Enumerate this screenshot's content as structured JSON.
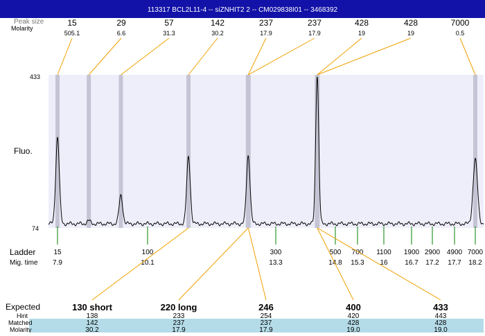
{
  "title": "113317  BCL2L11-4 -- siZNHIT2 2 -- CM029838I01 -- 3468392",
  "labels": {
    "peak_size_label": "Peak size",
    "molarity_label": "Molarity",
    "fluo_label": "Fluo.",
    "ladder_label": "Ladder",
    "migtime_label": "Mig. time",
    "expected_label": "Expected",
    "hint_label": "Hint",
    "matched_label": "Matched",
    "molarity_row_label": "Molarity"
  },
  "colors": {
    "title_bg": "#1212a8",
    "plot_bg": "#eeeefb",
    "band": "#c4c4d4",
    "connector": "#f0a000",
    "ladder_tick": "#008000",
    "bottom_band": "#b4dce8",
    "trace": "#000000"
  },
  "chart_data": {
    "type": "line",
    "y_axis_labels": [
      "433",
      "74"
    ],
    "ylim": [
      74,
      433
    ],
    "x_scale": "ladder (bp, nonlinear)",
    "top_peaks": [
      {
        "size": "15",
        "molarity": "505.1"
      },
      {
        "size": "29",
        "molarity": "6.6"
      },
      {
        "size": "57",
        "molarity": "31.3"
      },
      {
        "size": "142",
        "molarity": "30.2"
      },
      {
        "size": "237",
        "molarity": "17.9"
      },
      {
        "size": "237",
        "molarity": "17.9"
      },
      {
        "size": "428",
        "molarity": "19"
      },
      {
        "size": "428",
        "molarity": "19"
      },
      {
        "size": "7000",
        "molarity": "0.5"
      }
    ],
    "ladder": [
      {
        "bp": "15",
        "time": "7.9"
      },
      {
        "bp": "100",
        "time": "10.1"
      },
      {
        "bp": "300",
        "time": "13.3"
      },
      {
        "bp": "500",
        "time": "14.8"
      },
      {
        "bp": "700",
        "time": "15.3"
      },
      {
        "bp": "1100",
        "time": "16"
      },
      {
        "bp": "1900",
        "time": "16.7"
      },
      {
        "bp": "2900",
        "time": "17.2"
      },
      {
        "bp": "4900",
        "time": "17.7"
      },
      {
        "bp": "7000",
        "time": "18.2"
      }
    ],
    "expected": [
      {
        "label": "130 short",
        "hint": "138",
        "matched": "142",
        "molarity": "30.2"
      },
      {
        "label": "220 long",
        "hint": "233",
        "matched": "237",
        "molarity": "17.9"
      },
      {
        "label": "246",
        "hint": "254",
        "matched": "237",
        "molarity": "17.9"
      },
      {
        "label": "400",
        "hint": "420",
        "matched": "428",
        "molarity": "19.0"
      },
      {
        "label": "433",
        "hint": "443",
        "matched": "428",
        "molarity": "19.0"
      }
    ],
    "trace_peaks": [
      {
        "size": 15,
        "height": 0.58
      },
      {
        "size": 29,
        "height": 0.02
      },
      {
        "size": 57,
        "height": 0.19
      },
      {
        "size": 142,
        "height": 0.45
      },
      {
        "size": 237,
        "height": 0.46
      },
      {
        "size": 428,
        "height": 1.0
      },
      {
        "size": 7000,
        "height": 0.43
      }
    ]
  }
}
